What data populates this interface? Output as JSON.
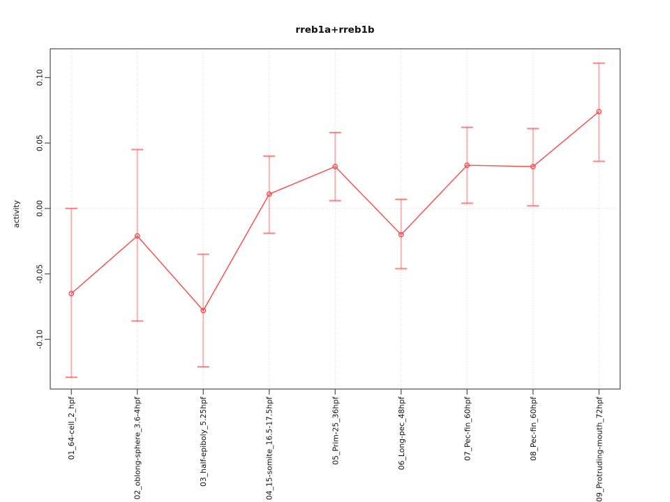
{
  "page": {
    "background": "#ffffff"
  },
  "chart_data": {
    "type": "line",
    "title": "rreb1a+rreb1b",
    "xlabel": "",
    "ylabel": "activity",
    "legend": "none",
    "categories": [
      "01_64-cell_2_hpf",
      "02_oblong-sphere_3.6-4hpf",
      "03_half-epiboly_5.25hpf",
      "04_15-somite_16.5-17.5hpf",
      "05_Prim-25_36hpf",
      "06_Long-pec_48hpf",
      "07_Pec-fin_60hpf",
      "08_Pec-fin_60hpf",
      "09_Protruding-mouth_72hpf"
    ],
    "series": [
      {
        "name": "activity",
        "marker": "open-circle",
        "values": [
          -0.065,
          -0.021,
          -0.078,
          0.011,
          0.032,
          -0.02,
          0.033,
          0.032,
          0.074
        ],
        "error_low": [
          -0.129,
          -0.086,
          -0.121,
          -0.019,
          0.006,
          -0.046,
          0.004,
          0.002,
          0.036
        ],
        "error_high": [
          0.0,
          0.045,
          -0.035,
          0.04,
          0.058,
          0.007,
          0.062,
          0.061,
          0.111
        ]
      }
    ],
    "ytick_values": [
      -0.1,
      -0.05,
      0.0,
      0.05,
      0.1
    ],
    "ytick_labels": [
      "-0.10",
      "-0.05",
      "0.00",
      "0.05",
      "0.10"
    ],
    "ylim": [
      -0.138,
      0.122
    ],
    "grid": {
      "vertical_gridlines_at_each_category": true,
      "horizontal_zero_line": true,
      "line_style": "dotted"
    },
    "colors": {
      "series_line": "#ff4747",
      "marker": "#ff4747",
      "error_bar": "rgba(255,70,70,0.40)",
      "error_cap": "rgba(255,70,70,0.62)",
      "gridline": "#dedede",
      "zero_line": "#dcdcdc",
      "axis_box": "#4c4c4c",
      "text": "#111111"
    }
  }
}
